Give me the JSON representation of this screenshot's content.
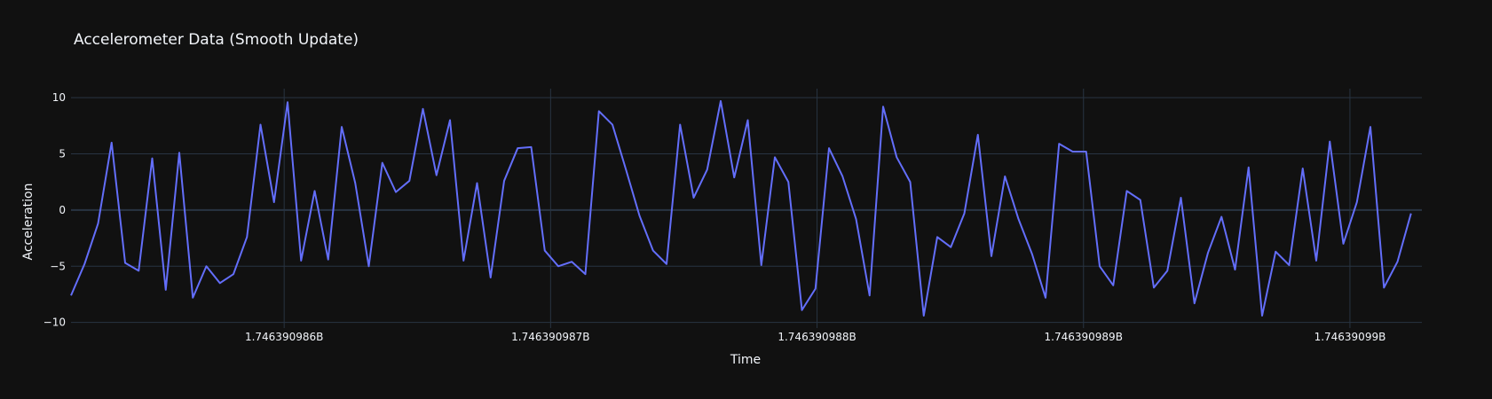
{
  "chart_data": {
    "type": "line",
    "title": "Accelerometer Data (Smooth Update)",
    "xlabel": "Time",
    "ylabel": "Acceleration",
    "xlim": [
      1746390985.2,
      1746390990.27
    ],
    "ylim": [
      -10.5,
      10.8
    ],
    "x_ticks": [
      1746390986,
      1746390987,
      1746390988,
      1746390989,
      1746390990
    ],
    "x_tick_labels": [
      "1.746390986B",
      "1.746390987B",
      "1.746390988B",
      "1.746390989B",
      "1.74639099B"
    ],
    "y_ticks": [
      10,
      5,
      0,
      -5,
      -10
    ],
    "y_tick_labels": [
      "10",
      "5",
      "0",
      "−5",
      "−10"
    ],
    "grid": true,
    "line_color": "#636efa",
    "background_color": "#111111",
    "grid_color": "#283442",
    "x_start": 1746390985.2,
    "x_step": 0.0508,
    "values": [
      -7.6,
      -4.8,
      -1.2,
      6.0,
      -4.7,
      -5.4,
      4.6,
      -7.1,
      5.1,
      -7.8,
      -5.0,
      -6.5,
      -5.7,
      -2.4,
      7.6,
      0.7,
      9.6,
      -4.5,
      1.7,
      -4.4,
      7.4,
      2.4,
      -5.0,
      4.2,
      1.6,
      2.6,
      9.0,
      3.1,
      8.0,
      -4.5,
      2.4,
      -6.0,
      2.6,
      5.5,
      5.6,
      -3.6,
      -5.0,
      -4.6,
      -5.7,
      8.8,
      7.6,
      3.6,
      -0.5,
      -3.6,
      -4.8,
      7.6,
      1.1,
      3.6,
      9.7,
      2.9,
      8.0,
      -4.9,
      4.7,
      2.5,
      -8.9,
      -7.0,
      5.5,
      3.0,
      -0.8,
      -7.6,
      9.2,
      4.7,
      2.5,
      -9.4,
      -2.4,
      -3.3,
      -0.3,
      6.7,
      -4.1,
      3.0,
      -0.8,
      -3.9,
      -7.8,
      5.9,
      5.2,
      5.2,
      -5.0,
      -6.7,
      1.7,
      0.9,
      -6.9,
      -5.4,
      1.1,
      -8.3,
      -3.8,
      -0.6,
      -5.3,
      3.8,
      -9.4,
      -3.7,
      -4.9,
      3.7,
      -4.5,
      6.1,
      -3.0,
      0.7,
      7.4,
      -6.9,
      -4.6,
      -0.3
    ]
  }
}
